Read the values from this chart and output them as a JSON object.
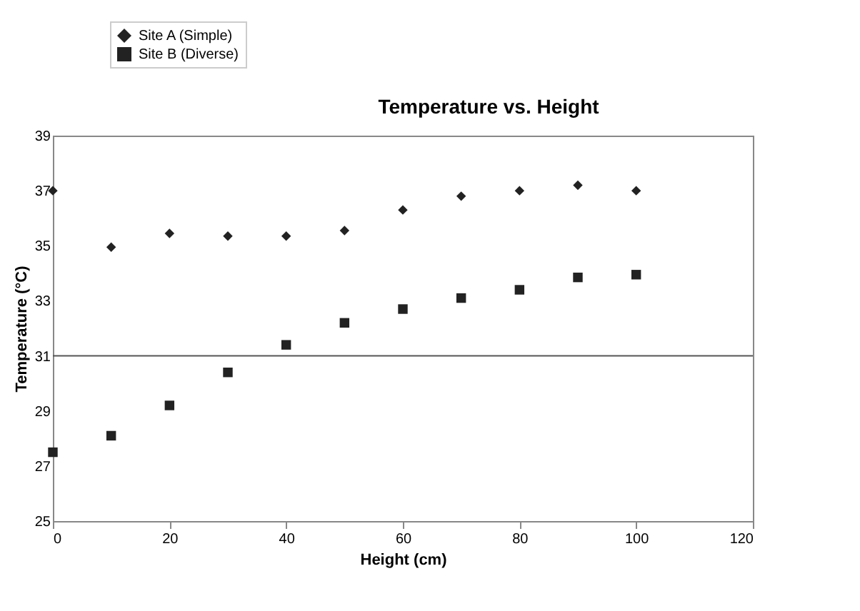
{
  "chart_data": {
    "type": "scatter",
    "title": "Temperature vs. Height",
    "xlabel": "Height (cm)",
    "ylabel": "Temperature (°C)",
    "x": [
      0,
      10,
      20,
      30,
      40,
      50,
      60,
      70,
      80,
      90,
      100
    ],
    "series": [
      {
        "name": "Site A (Simple)",
        "color": "#222222",
        "marker": "diamond",
        "values": [
          37.0,
          34.95,
          35.45,
          35.35,
          35.35,
          35.55,
          36.3,
          36.8,
          37.0,
          37.2,
          37.0
        ]
      },
      {
        "name": "Site B (Diverse)",
        "color": "#222222",
        "marker": "square",
        "values": [
          27.5,
          28.1,
          29.2,
          30.4,
          31.4,
          32.2,
          32.7,
          33.1,
          33.4,
          33.85,
          33.95
        ]
      }
    ],
    "xlim": [
      0,
      120
    ],
    "xticks": [
      0,
      20,
      40,
      60,
      80,
      100,
      120
    ],
    "ylim": [
      25,
      39
    ],
    "yticks": [
      25,
      27,
      29,
      31,
      33,
      35,
      37,
      39
    ],
    "ref_lines": [
      {
        "axis": "y",
        "value": 31,
        "color": "#555555"
      }
    ],
    "grid": false,
    "legend": "top left"
  }
}
